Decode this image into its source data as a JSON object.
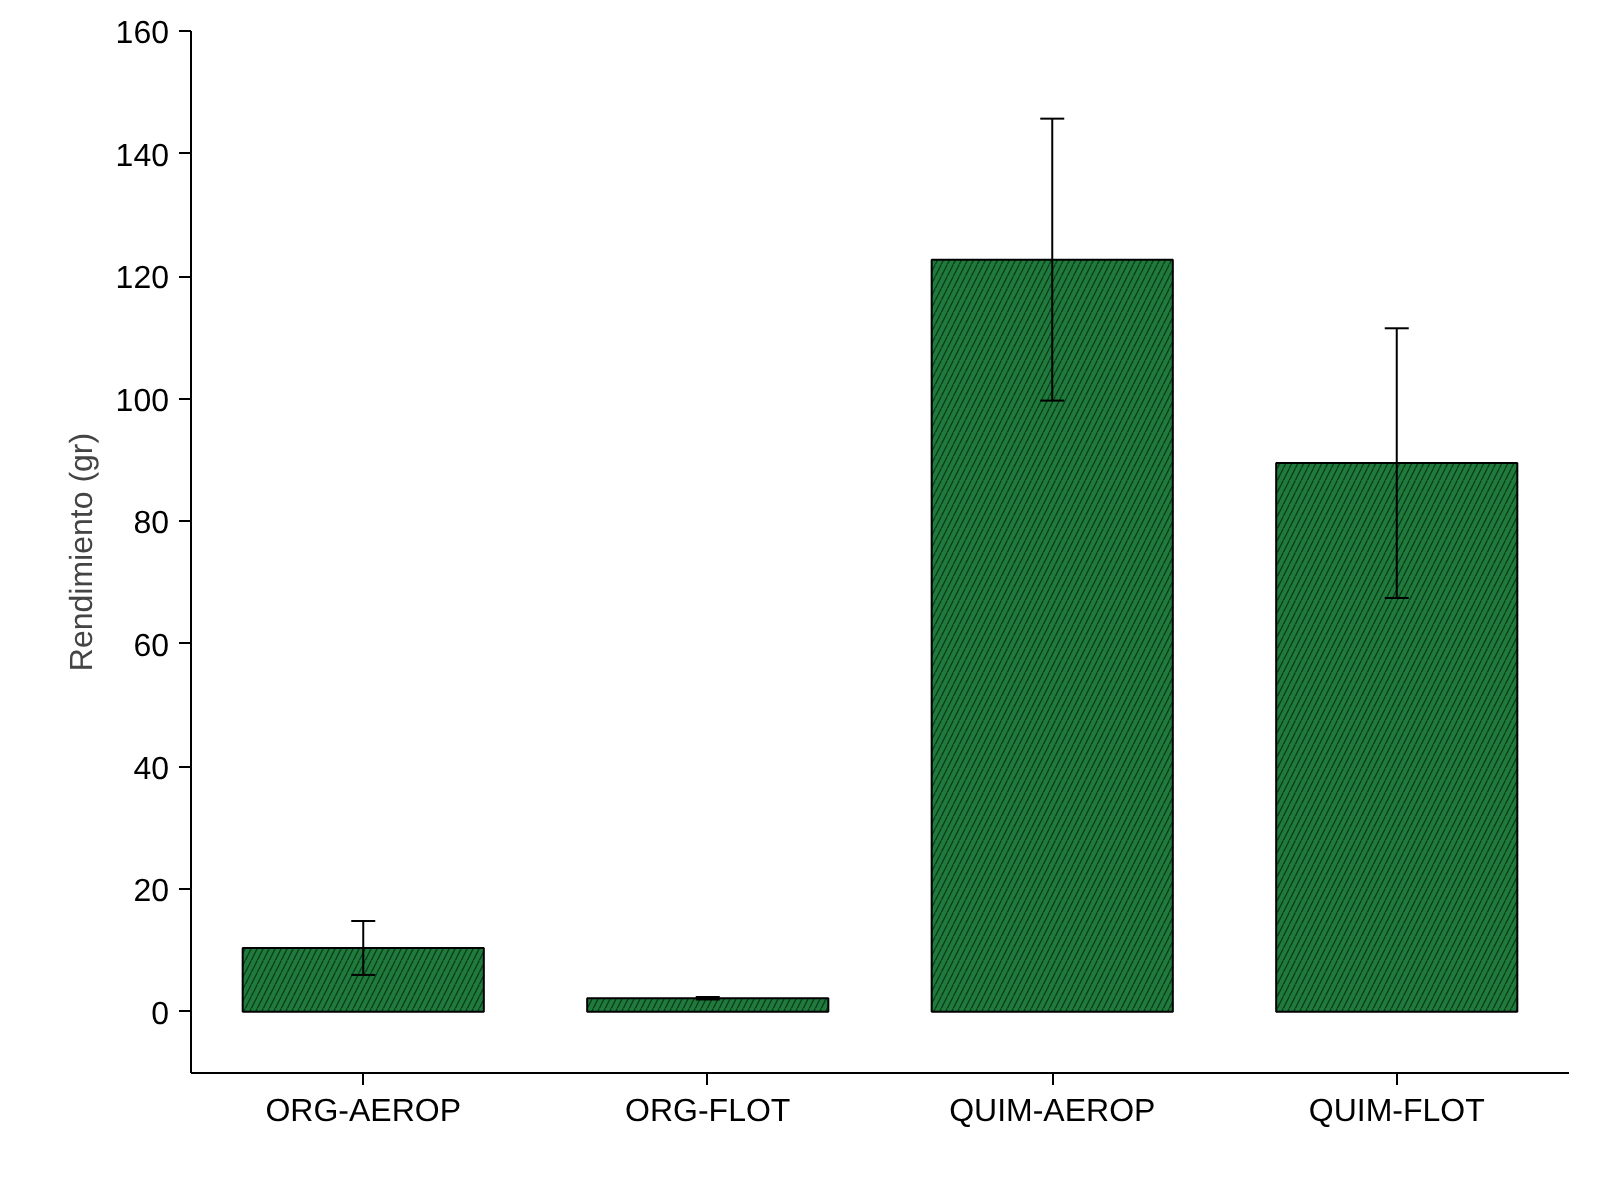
{
  "chart_data": {
    "type": "bar",
    "ylabel": "Rendimiento (gr)",
    "categories": [
      "ORG-AEROP",
      "ORG-FLOT",
      "QUIM-AEROP",
      "QUIM-FLOT"
    ],
    "values": [
      10.4,
      2.2,
      122.7,
      89.5
    ],
    "errors": [
      4.4,
      0.2,
      23,
      22
    ],
    "color": "#1f7a3c",
    "ylim": [
      -10,
      160
    ],
    "yticks": [
      0,
      20,
      40,
      60,
      80,
      100,
      120,
      140,
      160
    ],
    "grid": false
  }
}
